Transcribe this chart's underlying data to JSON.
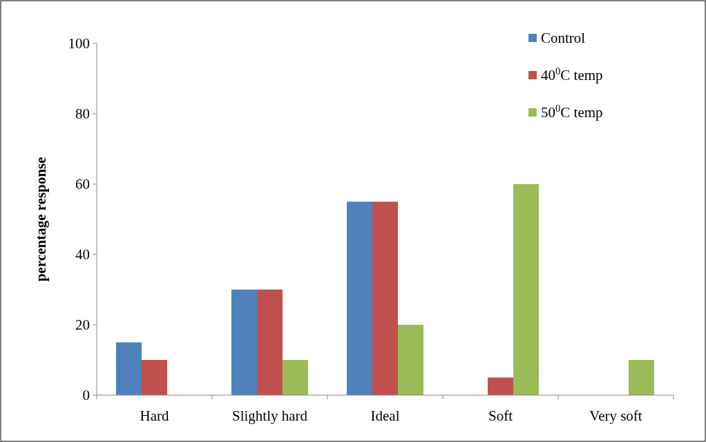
{
  "chart_data": {
    "type": "bar",
    "ylabel": "percentage response",
    "categories": [
      "Hard",
      "Slightly hard",
      "Ideal",
      "Soft",
      "Very soft"
    ],
    "series": [
      {
        "name": "Control",
        "color": "#4f81bd",
        "values": [
          15,
          30,
          55,
          0,
          0
        ]
      },
      {
        "name": "40$^{0}$C temp",
        "color": "#c0504d",
        "values": [
          10,
          30,
          55,
          5,
          0
        ]
      },
      {
        "name": "50$^{0}$C temp",
        "color": "#9bbb59",
        "values": [
          0,
          10,
          20,
          60,
          10
        ]
      }
    ],
    "ylim": [
      0,
      100
    ],
    "yticks": [
      0,
      20,
      40,
      60,
      80,
      100
    ],
    "grid": false,
    "legend": "top right"
  }
}
